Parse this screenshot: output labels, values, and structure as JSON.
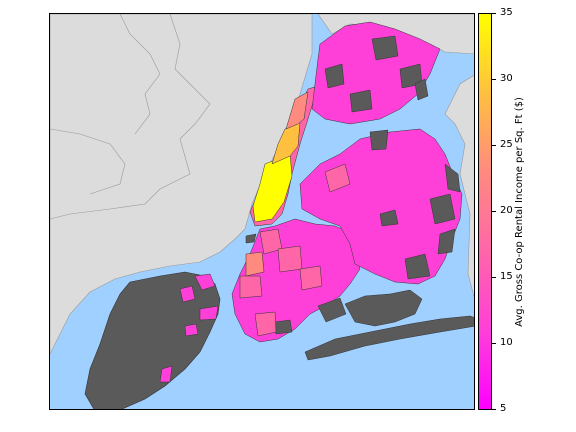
{
  "map": {
    "colors": {
      "water": "#9fd0ff",
      "land": "#dcdcdc",
      "no_data": "#5a5a5a",
      "low": "#ff00ff",
      "mid": "#ff66a8",
      "high": "#ffff00"
    }
  },
  "colorbar": {
    "label": "Avg. Gross Co-op Rental Income per Sq. Ft ($)",
    "min": 5,
    "max": 35,
    "ticks": [
      "35",
      "30",
      "25",
      "20",
      "15",
      "10",
      "5"
    ],
    "colors": [
      "#ff00ff",
      "#ff40d8",
      "#ff66a8",
      "#ff8a80",
      "#ffc040",
      "#ffff00"
    ]
  }
}
